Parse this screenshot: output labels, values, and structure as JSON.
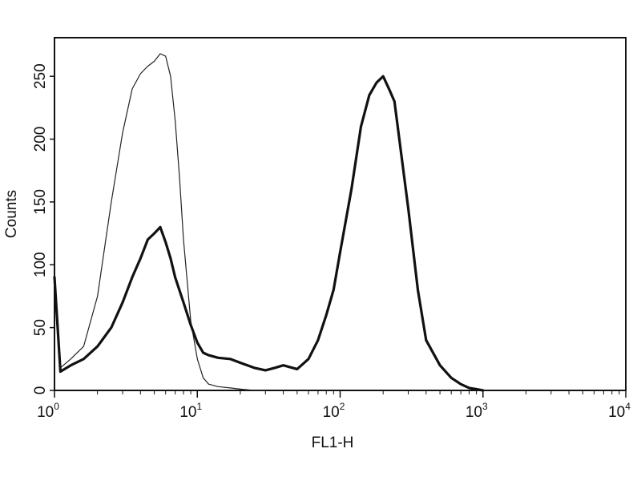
{
  "chart_data": {
    "type": "line",
    "title": "",
    "xlabel": "FL1-H",
    "ylabel": "Counts",
    "x_scale": "log",
    "xlim": [
      1,
      10000
    ],
    "ylim": [
      0,
      275
    ],
    "grid": false,
    "legend": "none",
    "x_ticks": [
      {
        "value": 1,
        "base": "10",
        "exp": "0"
      },
      {
        "value": 10,
        "base": "10",
        "exp": "1"
      },
      {
        "value": 100,
        "base": "10",
        "exp": "2"
      },
      {
        "value": 1000,
        "base": "10",
        "exp": "3"
      },
      {
        "value": 10000,
        "base": "10",
        "exp": "4"
      }
    ],
    "y_ticks": [
      "0",
      "50",
      "100",
      "150",
      "200",
      "250"
    ],
    "series": [
      {
        "style": "thin",
        "color": "#222222",
        "x": [
          1.0,
          1.1,
          1.3,
          1.6,
          2.0,
          2.5,
          3.0,
          3.5,
          4.0,
          4.5,
          5.0,
          5.5,
          6.0,
          6.5,
          7.0,
          7.5,
          8.0,
          9.0,
          10.0,
          11.0,
          12.0,
          14.0,
          17.0,
          20.0,
          25.0,
          30.0
        ],
        "values": [
          85,
          18,
          25,
          35,
          75,
          150,
          205,
          240,
          252,
          258,
          262,
          268,
          266,
          250,
          215,
          170,
          120,
          55,
          25,
          10,
          5,
          3,
          2,
          1,
          0,
          0
        ]
      },
      {
        "style": "thick",
        "color": "#111111",
        "x": [
          1.0,
          1.1,
          1.3,
          1.6,
          2.0,
          2.5,
          3.0,
          3.5,
          4.0,
          4.5,
          5.0,
          5.5,
          6.0,
          6.5,
          7.0,
          8.0,
          9.0,
          10.0,
          11.0,
          12.0,
          14.0,
          17.0,
          20.0,
          25.0,
          30.0,
          35.0,
          40.0,
          50.0,
          60.0,
          70.0,
          80.0,
          90.0,
          100.0,
          120.0,
          140.0,
          160.0,
          180.0,
          200.0,
          220.0,
          240.0,
          270.0,
          300.0,
          350.0,
          400.0,
          500.0,
          600.0,
          700.0,
          800.0,
          900.0,
          1000.0
        ],
        "values": [
          90,
          15,
          20,
          25,
          35,
          50,
          70,
          90,
          105,
          120,
          125,
          130,
          118,
          105,
          90,
          70,
          52,
          38,
          30,
          28,
          26,
          25,
          22,
          18,
          16,
          18,
          20,
          17,
          25,
          40,
          60,
          80,
          110,
          160,
          210,
          235,
          245,
          250,
          240,
          230,
          185,
          145,
          80,
          40,
          20,
          10,
          5,
          2,
          1,
          0
        ]
      }
    ]
  }
}
